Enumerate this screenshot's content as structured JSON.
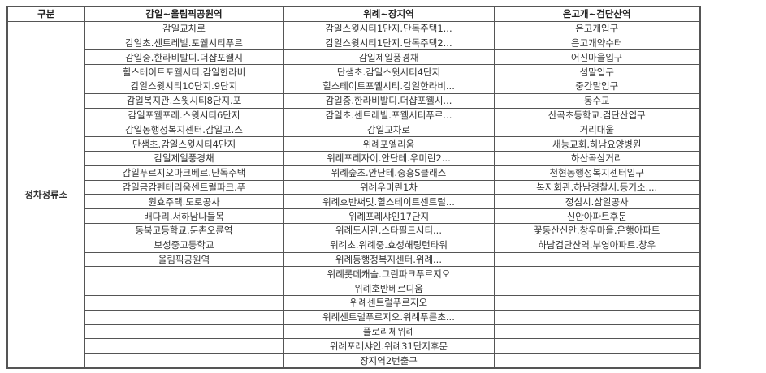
{
  "headers": [
    "구분",
    "감일~올림픽공원역",
    "위례~장지역",
    "은고개~검단산역"
  ],
  "category": "정차정류소",
  "columns": [
    [
      "감일교차로",
      "감일초.센트레빌.포웰시티푸르",
      "감일중.한라비발디.더샵포웰시",
      "힐스테이트포웰시티.감일한라비",
      "감일스윗시티10단지.9단지",
      "감일복지관.스윗시티8단지.포",
      "감일포웰포레.스윗시티6단지",
      "감일동행정복지센터.감일고.스",
      "단샘초.감일스윗시티4단지",
      "감일제일풍경채",
      "감일푸르지오마크베르.단독주택",
      "감일금감펜테리움센트럴파크.푸",
      "원효주택.도로공사",
      "배다리.서하남나들목",
      "동북고등학교.둔촌오륜역",
      "보성중고등학교",
      "올림픽공원역"
    ],
    [
      "감일스윗시티1단지.단독주택1...",
      "감일스윗시티1단지.단독주택2...",
      "감일제일풍경채",
      "단샘초.감일스윗시티4단지",
      "힐스테이트포웰시티.감일한라비...",
      "감일중.한라비발디.더샵포웰시...",
      "감일초.센트레빌.포웰시티푸르...",
      "감일교차로",
      "위례포엘리움",
      "위례포레자이.안단테.우미린2...",
      "위례숲초.안단테.중흥S클래스",
      "위례우미린1차",
      "위례호반써밋.힐스테이트센트럴...",
      "위례포레샤인17단지",
      "위례도서관.스타필드시티...",
      "위례초.위례중.효성해링턴타워",
      "위례동행정복지센터.위례...",
      "위례롯데캐슬.그린파크푸르지오",
      "위례호반베르디움",
      "위례센트럴푸르지오",
      "위례센트럴푸르지오.위례푸른초...",
      "플로리체위례",
      "위례포레샤인.위례31단지후문",
      "장지역2번출구"
    ],
    [
      "은고개입구",
      "은고개약수터",
      "어진마을입구",
      "섬말입구",
      "중간말입구",
      "동수교",
      "산곡초등학교.검단산입구",
      "거리대울",
      "새능교회.하남요양병원",
      "하산곡삼거리",
      "천현동행정복지센터입구",
      "복지회관.하남경찰서.등기소....",
      "정심시.삼일공사",
      "신안아파트후문",
      "꽃동산신안.창우마을.은행아파트",
      "하남검단산역.부영아파트.창우"
    ]
  ]
}
